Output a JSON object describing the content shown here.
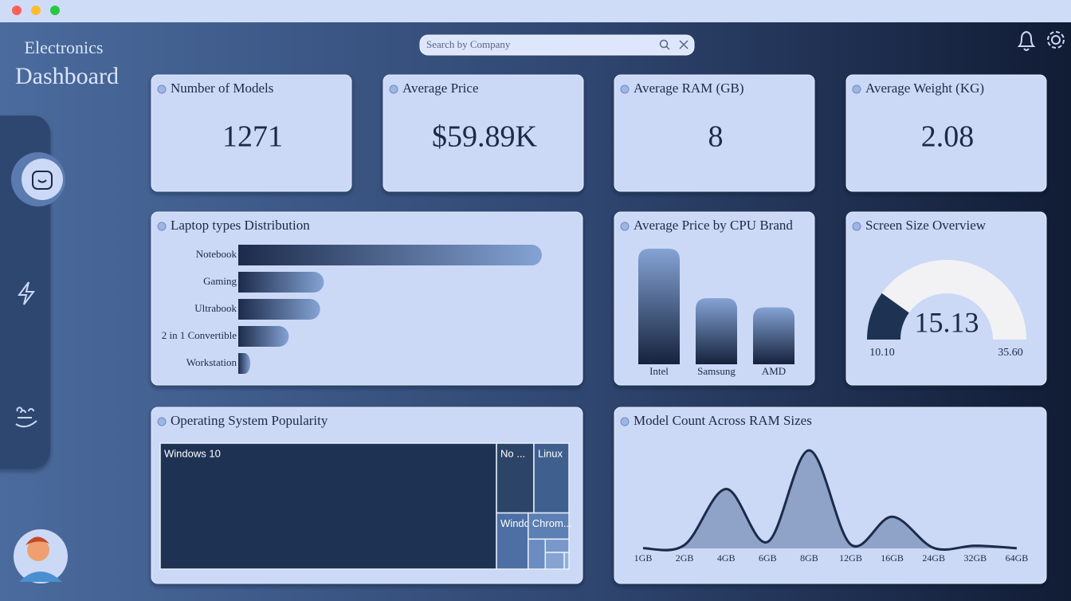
{
  "sidebar": {
    "title_line1": "Electronics",
    "title_line2": "Dashboard"
  },
  "search": {
    "placeholder": "Search by Company"
  },
  "kpis": [
    {
      "label": "Number of Models",
      "value": "1271"
    },
    {
      "label": "Average Price",
      "value": "$59.89K"
    },
    {
      "label": "Average RAM (GB)",
      "value": "8"
    },
    {
      "label": "Average Weight (KG)",
      "value": "2.08"
    }
  ],
  "laptop_types": {
    "type": "bar",
    "title": "Laptop types Distribution",
    "categories": [
      "Notebook",
      "Gaming",
      "Ultrabook",
      "2 in 1 Convertible",
      "Workstation"
    ],
    "values": [
      727,
      205,
      196,
      121,
      29
    ]
  },
  "cpu_price": {
    "type": "bar",
    "title": "Average Price by CPU Brand",
    "categories": [
      "Intel",
      "Samsung",
      "AMD"
    ],
    "values": [
      63,
      36,
      31
    ]
  },
  "screen_size": {
    "type": "gauge",
    "title": "Screen Size Overview",
    "value": 15.13,
    "min": {
      "value": 10.1,
      "label": "10.10"
    },
    "max": {
      "value": 35.6,
      "label": "35.60"
    }
  },
  "os": {
    "type": "treemap",
    "title": "Operating System Popularity",
    "categories": [
      "Windows 10",
      "No ...",
      "Linux",
      "Windo...",
      "Chrom...",
      null,
      null,
      null,
      null
    ],
    "values": [
      1072,
      66,
      62,
      45,
      27,
      13,
      8,
      8,
      2
    ]
  },
  "ram": {
    "type": "area",
    "title": "Model Count Across RAM Sizes",
    "categories": [
      "1GB",
      "2GB",
      "4GB",
      "6GB",
      "8GB",
      "12GB",
      "16GB",
      "24GB",
      "32GB",
      "64GB"
    ],
    "values": [
      1,
      22,
      375,
      41,
      619,
      25,
      200,
      3,
      17,
      1
    ]
  }
}
